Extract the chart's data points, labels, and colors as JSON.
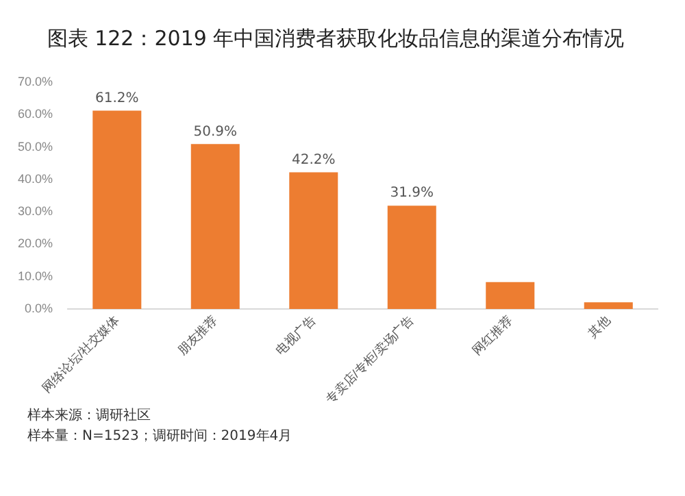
{
  "chart_data": {
    "type": "bar",
    "title": "图表 122：2019 年中国消费者获取化妆品信息的渠道分布情况",
    "categories": [
      "网络论坛/社交媒体",
      "朋友推荐",
      "电视广告",
      "专卖店/专柜/卖场广告",
      "网红推荐",
      "其他"
    ],
    "values": [
      61.2,
      50.9,
      42.2,
      31.9,
      8.3,
      2.1
    ],
    "value_labels": [
      "61.2%",
      "50.9%",
      "42.2%",
      "31.9%",
      null,
      null
    ],
    "color": "#ed7d31",
    "ylim": [
      0,
      70
    ],
    "yticks": [
      {
        "value": 0,
        "label": "0.0%"
      },
      {
        "value": 10,
        "label": "10.0%"
      },
      {
        "value": 20,
        "label": "20.0%"
      },
      {
        "value": 30,
        "label": "30.0%"
      },
      {
        "value": 40,
        "label": "40.0%"
      },
      {
        "value": 50,
        "label": "50.0%"
      },
      {
        "value": 60,
        "label": "60.0%"
      },
      {
        "value": 70,
        "label": "70.0%"
      }
    ],
    "grid": false,
    "legend": false,
    "annotations": [
      "样本来源：调研社区",
      "样本量：N=1523；调研时间：2019年4月"
    ]
  }
}
